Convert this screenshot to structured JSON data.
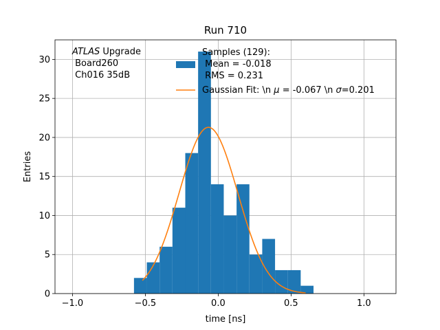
{
  "chart_data": {
    "type": "bar",
    "title": "Run 710",
    "xlabel": "time [ns]",
    "ylabel": "Entries",
    "xlim": [
      -1.12,
      1.22
    ],
    "ylim": [
      0,
      32.5
    ],
    "grid": true,
    "x_ticks": [
      -1.0,
      -0.5,
      0.0,
      0.5,
      1.0
    ],
    "x_tick_labels": [
      "−1.0",
      "−0.5",
      "0.0",
      "0.5",
      "1.0"
    ],
    "y_ticks": [
      0,
      5,
      10,
      15,
      20,
      25,
      30
    ],
    "y_tick_labels": [
      "0",
      "5",
      "10",
      "15",
      "20",
      "25",
      "30"
    ],
    "bin_edges": [
      -0.578,
      -0.49,
      -0.402,
      -0.314,
      -0.226,
      -0.138,
      -0.05,
      0.038,
      0.126,
      0.214,
      0.302,
      0.39,
      0.478,
      0.566,
      0.654
    ],
    "counts": [
      2,
      4,
      6,
      11,
      18,
      31,
      14,
      10,
      14,
      5,
      7,
      3,
      3,
      1
    ],
    "bar_color": "#1f77b4",
    "fit": {
      "type": "gaussian",
      "amplitude": 21.3,
      "mu": -0.067,
      "sigma": 0.201,
      "x_range": [
        -0.52,
        0.6
      ],
      "color": "#ff7f0e"
    },
    "annotation": {
      "line1_italic": "ATLAS",
      "line1_rest": " Upgrade",
      "line2": " Board260",
      "line3": " Ch016 35dB"
    },
    "legend": {
      "placement": "top-right",
      "samples_label": "Samples (129):",
      "samples_mean": " Mean = -0.018",
      "samples_rms": " RMS = 0.231",
      "fit_label_part1": "Gaussian Fit: \\n ",
      "fit_mu_symbol": "μ",
      "fit_label_part2": " = -0.067 \\n ",
      "fit_sigma_symbol": "σ",
      "fit_label_part3": "=0.201"
    }
  }
}
